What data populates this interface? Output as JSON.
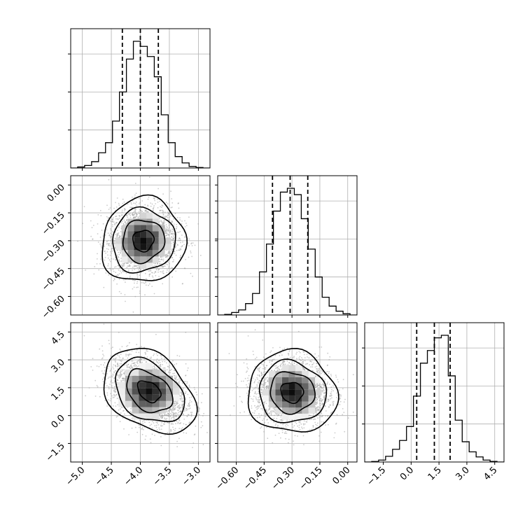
{
  "chart_data": {
    "type": "corner",
    "title": "",
    "parameters": [
      {
        "name": "param-0",
        "label": "",
        "range": [
          -5.2,
          -2.8
        ],
        "ticks": [
          -5.0,
          -4.5,
          -4.0,
          -3.5,
          -3.0
        ],
        "tick_labels": [
          "−5.0",
          "−4.5",
          "−4.0",
          "−3.5",
          "−3.0"
        ],
        "quantiles": [
          -4.31,
          -4.0,
          -3.69
        ]
      },
      {
        "name": "param-1",
        "label": "",
        "range": [
          -0.7,
          0.05
        ],
        "ticks": [
          -0.6,
          -0.45,
          -0.3,
          -0.15,
          0.0
        ],
        "tick_labels": [
          "−0.60",
          "−0.45",
          "−0.30",
          "−0.15",
          "0.00"
        ],
        "quantiles": [
          -0.405,
          -0.31,
          -0.215
        ]
      },
      {
        "name": "param-2",
        "label": "",
        "range": [
          -2.5,
          5.0
        ],
        "ticks": [
          -1.5,
          0.0,
          1.5,
          3.0,
          4.5
        ],
        "tick_labels": [
          "−1.5",
          "0.0",
          "1.5",
          "3.0",
          "4.5"
        ],
        "quantiles": [
          0.3,
          1.25,
          2.1
        ]
      }
    ],
    "histograms": [
      {
        "param": 0,
        "bin_edges": [
          -5.2,
          -5.08,
          -4.96,
          -4.84,
          -4.72,
          -4.6,
          -4.48,
          -4.36,
          -4.24,
          -4.12,
          -4.0,
          -3.88,
          -3.76,
          -3.64,
          -3.52,
          -3.4,
          -3.28,
          -3.16,
          -3.04,
          -2.92,
          -2.8
        ],
        "counts": [
          0,
          0.008,
          0.02,
          0.05,
          0.12,
          0.2,
          0.37,
          0.6,
          0.86,
          1.0,
          0.96,
          0.88,
          0.72,
          0.42,
          0.2,
          0.09,
          0.04,
          0.012,
          0.004,
          0
        ]
      },
      {
        "param": 1,
        "bin_edges": [
          -0.7,
          -0.6625,
          -0.625,
          -0.5875,
          -0.55,
          -0.5125,
          -0.475,
          -0.4375,
          -0.4,
          -0.3625,
          -0.325,
          -0.2875,
          -0.25,
          -0.2125,
          -0.175,
          -0.1375,
          -0.1,
          -0.0625,
          -0.025,
          0.0125,
          0.05
        ],
        "counts": [
          0,
          0.005,
          0.02,
          0.04,
          0.09,
          0.17,
          0.34,
          0.56,
          0.82,
          0.97,
          1.0,
          0.95,
          0.76,
          0.52,
          0.3,
          0.14,
          0.07,
          0.03,
          0.01,
          0
        ]
      },
      {
        "param": 2,
        "bin_edges": [
          -2.5,
          -2.125,
          -1.75,
          -1.375,
          -1.0,
          -0.625,
          -0.25,
          0.125,
          0.5,
          0.875,
          1.25,
          1.625,
          2.0,
          2.375,
          2.75,
          3.125,
          3.5,
          3.875,
          4.25,
          4.625,
          5.0
        ],
        "counts": [
          0,
          0.004,
          0.015,
          0.045,
          0.1,
          0.17,
          0.28,
          0.52,
          0.78,
          0.88,
          0.98,
          1.0,
          0.68,
          0.33,
          0.16,
          0.08,
          0.04,
          0.015,
          0.005,
          0
        ]
      }
    ],
    "pairs": [
      {
        "x_param": 0,
        "y_param": 1,
        "center": [
          -3.95,
          -0.3
        ],
        "sigma": [
          0.3,
          0.095
        ],
        "rho": 0.05,
        "contour_levels_sigma": [
          0.5,
          1.0,
          1.5,
          2.0
        ]
      },
      {
        "x_param": 0,
        "y_param": 2,
        "center": [
          -3.85,
          1.3
        ],
        "sigma": [
          0.33,
          0.95
        ],
        "rho": -0.35,
        "contour_levels_sigma": [
          0.5,
          1.0,
          1.5,
          2.0
        ]
      },
      {
        "x_param": 1,
        "y_param": 2,
        "center": [
          -0.3,
          1.25
        ],
        "sigma": [
          0.1,
          0.92
        ],
        "rho": -0.05,
        "contour_levels_sigma": [
          0.5,
          1.0,
          1.5,
          2.0
        ]
      }
    ],
    "grid": true,
    "hist_line_color": "#000000",
    "quantile_line_style": "dashed",
    "scatter_color": "#9a9a9a"
  }
}
